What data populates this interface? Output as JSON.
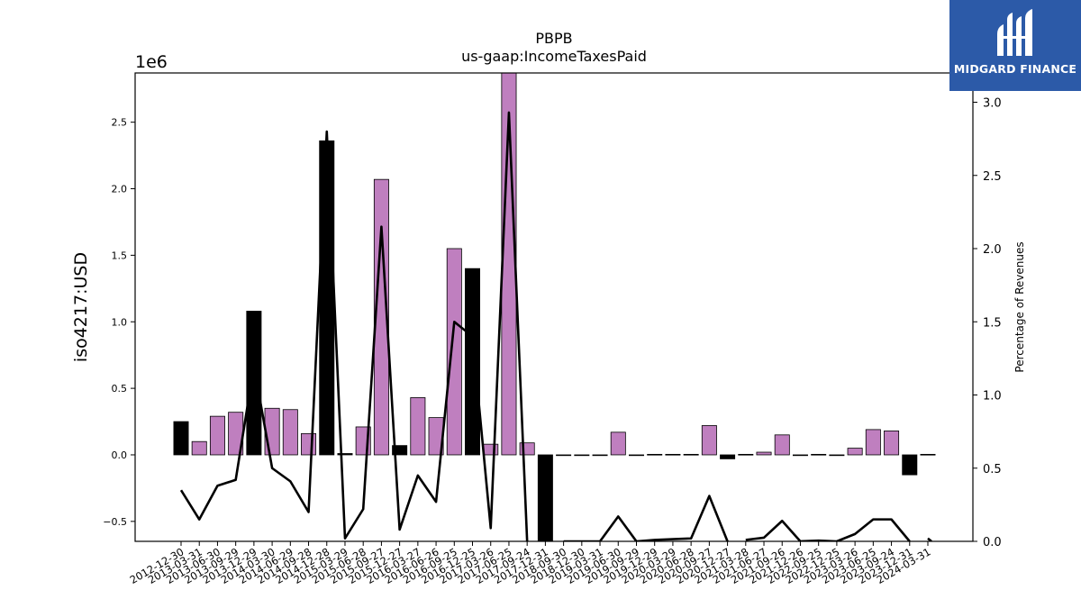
{
  "chart_data": {
    "type": "bar",
    "title": "PBPB",
    "subtitle": "us-gaap:IncomeTaxesPaid",
    "ylabel": "iso4217:USD",
    "y_offset_label": "1e6",
    "y2label": "Percentage of Revenues",
    "ylim": [
      -0.65,
      2.87
    ],
    "y2lim": [
      0.0,
      3.2
    ],
    "yticks": [
      -0.5,
      0.0,
      0.5,
      1.0,
      1.5,
      2.0,
      2.5
    ],
    "y2ticks": [
      0.0,
      0.5,
      1.0,
      1.5,
      2.0,
      2.5,
      3.0
    ],
    "grid": false,
    "categories": [
      "2012-12-30",
      "2013-03-31",
      "2013-06-30",
      "2013-09-29",
      "2013-12-29",
      "2014-03-30",
      "2014-06-29",
      "2014-09-28",
      "2014-12-28",
      "2015-03-29",
      "2015-06-28",
      "2015-09-27",
      "2015-12-27",
      "2016-03-27",
      "2016-06-26",
      "2016-09-25",
      "2016-12-25",
      "2017-03-26",
      "2017-06-25",
      "2017-09-24",
      "2017-12-31",
      "2018-09-30",
      "2018-12-30",
      "2019-03-31",
      "2019-06-30",
      "2019-09-29",
      "2019-12-29",
      "2020-03-29",
      "2020-06-28",
      "2020-09-27",
      "2020-12-27",
      "2021-03-28",
      "2021-06-27",
      "2021-09-26",
      "2021-12-26",
      "2022-09-25",
      "2022-12-25",
      "2023-03-26",
      "2023-06-25",
      "2023-09-24",
      "2023-12-31",
      "2024-03-31"
    ],
    "series": [
      {
        "values": [
          0.25,
          0.1,
          0.29,
          0.32,
          1.08,
          0.35,
          0.34,
          0.16,
          2.36,
          0.01,
          0.21,
          2.07,
          0.07,
          0.43,
          0.28,
          1.55,
          1.4,
          0.08,
          3.3,
          0.09,
          -0.7,
          -0.005,
          -0.005,
          -0.005,
          0.17,
          -0.002,
          0.004,
          0.004,
          0.004,
          0.22,
          -0.03,
          0.004,
          0.02,
          0.15,
          -0.002,
          0.004,
          -0.002,
          0.05,
          0.19,
          0.18,
          -0.15,
          0.004
        ],
        "colors": [
          "#000000",
          "#bf7fbf",
          "#bf7fbf",
          "#bf7fbf",
          "#000000",
          "#bf7fbf",
          "#bf7fbf",
          "#bf7fbf",
          "#000000",
          "#000000",
          "#bf7fbf",
          "#bf7fbf",
          "#000000",
          "#bf7fbf",
          "#bf7fbf",
          "#bf7fbf",
          "#000000",
          "#bf7fbf",
          "#bf7fbf",
          "#bf7fbf",
          "#000000",
          "#000000",
          "#000000",
          "#000000",
          "#bf7fbf",
          "#000000",
          "#000000",
          "#000000",
          "#000000",
          "#bf7fbf",
          "#000000",
          "#000000",
          "#bf7fbf",
          "#bf7fbf",
          "#000000",
          "#000000",
          "#000000",
          "#bf7fbf",
          "#bf7fbf",
          "#bf7fbf",
          "#000000",
          "#000000"
        ]
      },
      {
        "axis": "right",
        "line_color": "#000000",
        "segments": [
          [
            [
              0,
              0.35
            ],
            [
              1,
              0.15
            ],
            [
              2,
              0.38
            ],
            [
              3,
              0.42
            ],
            [
              4,
              1.2
            ],
            [
              5,
              0.5
            ],
            [
              6,
              0.41
            ],
            [
              7,
              0.2
            ],
            [
              8,
              2.8
            ],
            [
              9,
              0.02
            ],
            [
              10,
              0.22
            ],
            [
              11,
              2.15
            ],
            [
              12,
              0.08
            ],
            [
              13,
              0.45
            ],
            [
              14,
              0.27
            ],
            [
              15,
              1.5
            ],
            [
              16,
              1.4
            ],
            [
              17,
              0.09
            ],
            [
              18,
              2.93
            ],
            [
              19,
              0.0
            ]
          ],
          [
            [
              21,
              0.0
            ],
            [
              22,
              0.0
            ],
            [
              23,
              0.0
            ],
            [
              24,
              0.17
            ],
            [
              25,
              0.0
            ],
            [
              26,
              0.01
            ],
            [
              27,
              0.015
            ],
            [
              28,
              0.02
            ],
            [
              29,
              0.31
            ],
            [
              30,
              0.0
            ]
          ],
          [
            [
              31,
              0.01
            ],
            [
              32,
              0.025
            ],
            [
              33,
              0.14
            ],
            [
              34,
              0.0
            ],
            [
              35,
              0.005
            ],
            [
              36,
              0.0
            ],
            [
              37,
              0.05
            ],
            [
              38,
              0.15
            ],
            [
              39,
              0.15
            ],
            [
              40,
              0.0
            ]
          ],
          [
            [
              41,
              0.02
            ],
            [
              41.2,
              0.0
            ]
          ]
        ]
      }
    ]
  },
  "watermark": {
    "brand": "MIDGARD FINANCE",
    "bg_color": "#2c5aa8",
    "icon": "midgard-logo-icon"
  }
}
